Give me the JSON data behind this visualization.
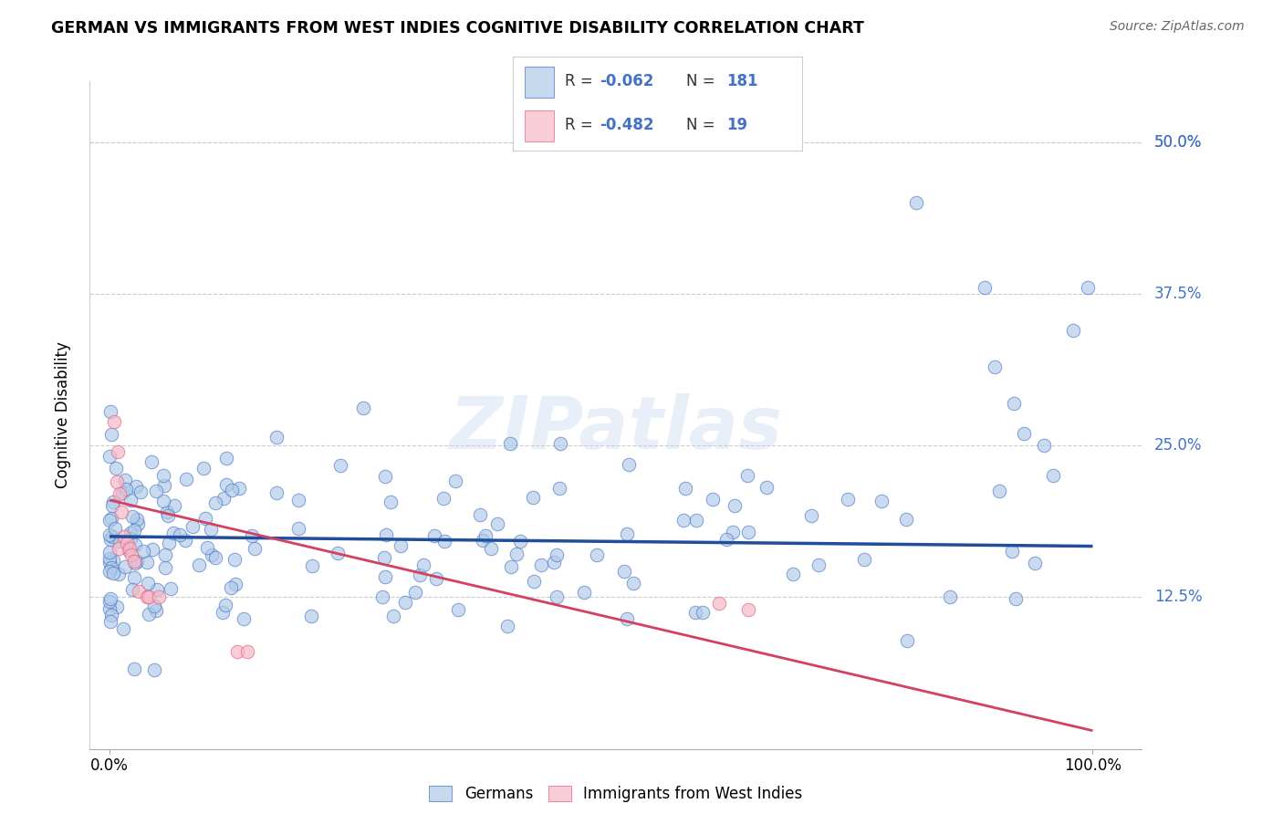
{
  "title": "GERMAN VS IMMIGRANTS FROM WEST INDIES COGNITIVE DISABILITY CORRELATION CHART",
  "source": "Source: ZipAtlas.com",
  "ylabel": "Cognitive Disability",
  "xlim": [
    -0.02,
    1.05
  ],
  "ylim": [
    0.0,
    0.55
  ],
  "yticks": [
    0.125,
    0.25,
    0.375,
    0.5
  ],
  "ytick_labels": [
    "12.5%",
    "25.0%",
    "37.5%",
    "50.0%"
  ],
  "xticks": [
    0.0,
    1.0
  ],
  "xtick_labels": [
    "0.0%",
    "100.0%"
  ],
  "blue_color": "#aec9e8",
  "pink_color": "#f4b8c8",
  "blue_edge": "#4472c4",
  "pink_edge": "#e8607a",
  "line_blue": "#1f4e9c",
  "line_pink": "#d44060",
  "watermark": "ZIPatlas",
  "blue_r": -0.062,
  "blue_n": 181,
  "pink_r": -0.482,
  "pink_n": 19,
  "background_color": "#ffffff",
  "grid_color": "#cccccc",
  "ytick_color": "#4472c4"
}
